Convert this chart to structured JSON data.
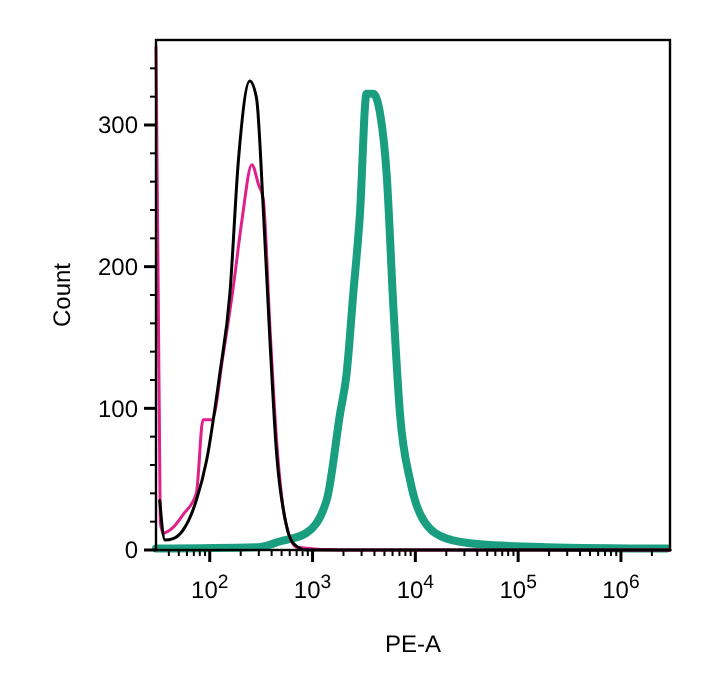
{
  "chart_data": {
    "type": "line",
    "xlabel": "PE-A",
    "ylabel": "Count",
    "log": "x",
    "xlim": [
      30,
      3000000
    ],
    "ylim": [
      0,
      360
    ],
    "xticks": [
      {
        "value": 40,
        "label": null
      },
      {
        "value": 50,
        "label": null
      },
      {
        "value": 60,
        "label": null
      },
      {
        "value": 70,
        "label": null
      },
      {
        "value": 80,
        "label": null
      },
      {
        "value": 90,
        "label": null
      },
      {
        "value": 100,
        "label": "10$^{2}$"
      },
      {
        "value": 200,
        "label": null
      },
      {
        "value": 300,
        "label": null
      },
      {
        "value": 400,
        "label": null
      },
      {
        "value": 500,
        "label": null
      },
      {
        "value": 600,
        "label": null
      },
      {
        "value": 700,
        "label": null
      },
      {
        "value": 800,
        "label": null
      },
      {
        "value": 900,
        "label": null
      },
      {
        "value": 1000,
        "label": "10$^{3}$"
      },
      {
        "value": 2000,
        "label": null
      },
      {
        "value": 3000,
        "label": null
      },
      {
        "value": 4000,
        "label": null
      },
      {
        "value": 5000,
        "label": null
      },
      {
        "value": 6000,
        "label": null
      },
      {
        "value": 7000,
        "label": null
      },
      {
        "value": 8000,
        "label": null
      },
      {
        "value": 9000,
        "label": null
      },
      {
        "value": 10000,
        "label": "10$^{4}$"
      },
      {
        "value": 20000,
        "label": null
      },
      {
        "value": 30000,
        "label": null
      },
      {
        "value": 40000,
        "label": null
      },
      {
        "value": 50000,
        "label": null
      },
      {
        "value": 60000,
        "label": null
      },
      {
        "value": 70000,
        "label": null
      },
      {
        "value": 80000,
        "label": null
      },
      {
        "value": 90000,
        "label": null
      },
      {
        "value": 100000,
        "label": "10$^{5}$"
      },
      {
        "value": 200000,
        "label": null
      },
      {
        "value": 300000,
        "label": null
      },
      {
        "value": 400000,
        "label": null
      },
      {
        "value": 500000,
        "label": null
      },
      {
        "value": 600000,
        "label": null
      },
      {
        "value": 700000,
        "label": null
      },
      {
        "value": 800000,
        "label": null
      },
      {
        "value": 900000,
        "label": null
      },
      {
        "value": 1000000,
        "label": "10$^{6}$"
      },
      {
        "value": 2000000,
        "label": null
      }
    ],
    "yticks": [
      0,
      {
        "value": 20,
        "label": null
      },
      {
        "value": 40,
        "label": null
      },
      {
        "value": 60,
        "label": null
      },
      {
        "value": 80,
        "label": null
      },
      100,
      {
        "value": 120,
        "label": null
      },
      {
        "value": 140,
        "label": null
      },
      {
        "value": 160,
        "label": null
      },
      {
        "value": 180,
        "label": null
      },
      200,
      {
        "value": 220,
        "label": null
      },
      {
        "value": 240,
        "label": null
      },
      {
        "value": 260,
        "label": null
      },
      {
        "value": 280,
        "label": null
      },
      300,
      {
        "value": 320,
        "label": null
      },
      {
        "value": 340,
        "label": null
      }
    ],
    "grid": false,
    "marker": "none",
    "line_style": "solid",
    "series": [
      {
        "color": "#1a9e80",
        "x": [
          30,
          300,
          478,
          870,
          1370,
          1850,
          2140,
          2490,
          2890,
          3350,
          3900,
          4540,
          5260,
          6120,
          7090,
          8900,
          12000,
          20200,
          43000,
          186000,
          2800000
        ],
        "values": [
          1,
          2,
          6,
          12,
          35,
          96,
          124,
          181,
          237,
          322,
          322,
          308,
          265,
          171,
          96,
          49,
          21,
          8,
          4,
          2,
          1
        ]
      },
      {
        "color": "#e0208a",
        "x": [
          30,
          33,
          35,
          44,
          55,
          74,
          86,
          105,
          135,
          169,
          205,
          257,
          298,
          331,
          385,
          447,
          543,
          700,
          1860,
          3000000
        ],
        "values": [
          355,
          20,
          12,
          16,
          25,
          40,
          92,
          92,
          138,
          185,
          232,
          272,
          258,
          248,
          157,
          77,
          21,
          2,
          0,
          0
        ]
      },
      {
        "color": "#000000",
        "x": [
          32.6,
          36.7,
          44,
          55,
          74,
          93,
          125,
          157,
          190,
          245,
          285,
          331,
          385,
          447,
          543,
          645,
          870,
          3000000
        ],
        "values": [
          35,
          7,
          8,
          14,
          35,
          63,
          124,
          181,
          275,
          331,
          319,
          242,
          148,
          68,
          21,
          5,
          0,
          0
        ]
      }
    ]
  }
}
